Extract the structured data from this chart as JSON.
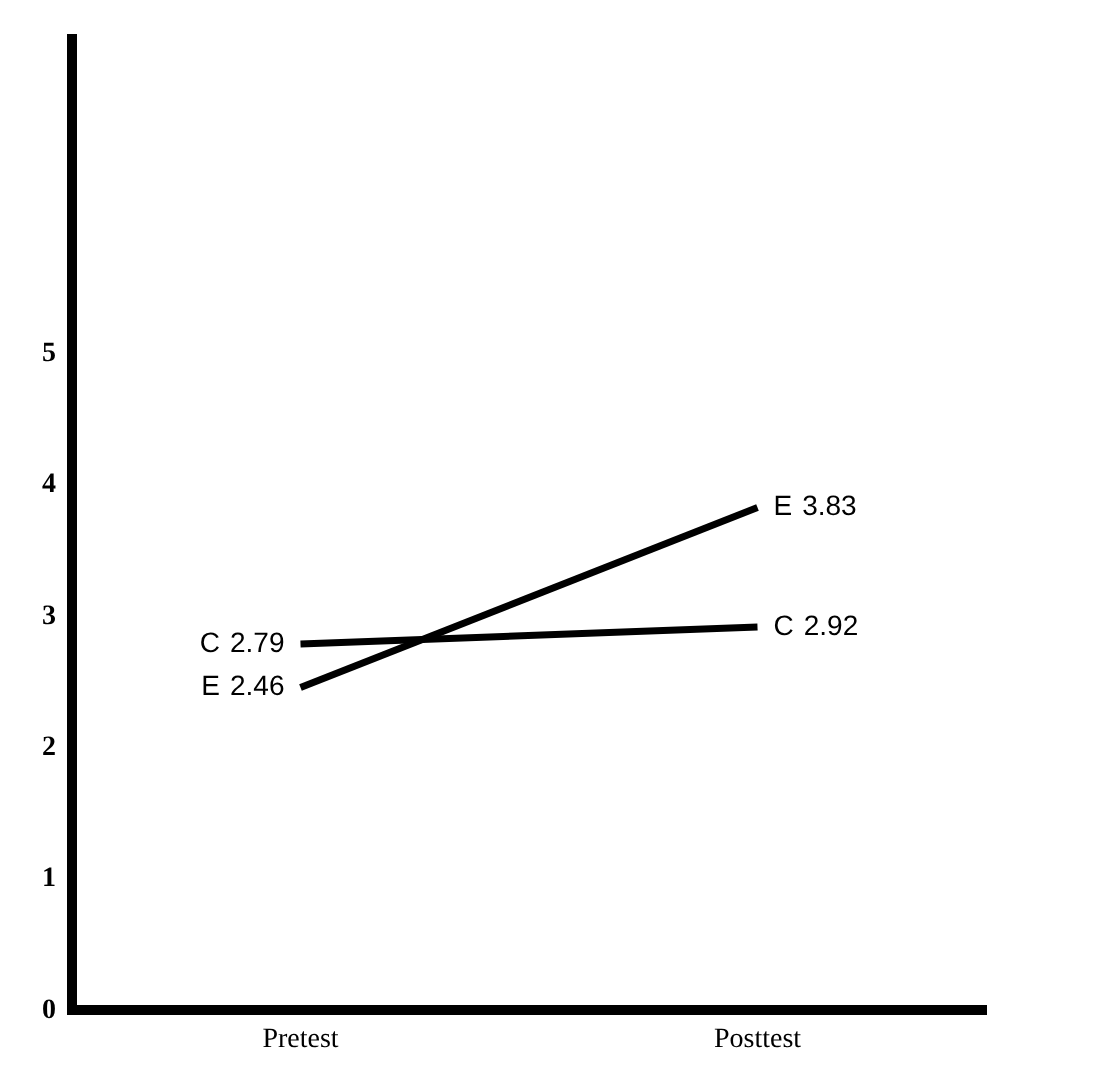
{
  "chart_data": {
    "type": "line",
    "categories": [
      "Pretest",
      "Posttest"
    ],
    "series": [
      {
        "name": "C",
        "color": "#000000",
        "values": [
          2.79,
          2.92
        ]
      },
      {
        "name": "E",
        "color": "#000000",
        "values": [
          2.46,
          3.83
        ]
      }
    ],
    "ylim": [
      0,
      7.4
    ],
    "yticks": [
      0,
      1,
      2,
      3,
      4,
      5
    ],
    "grid": false,
    "legend": false,
    "marker": "none",
    "line_style": "solid",
    "data_labels": true
  }
}
